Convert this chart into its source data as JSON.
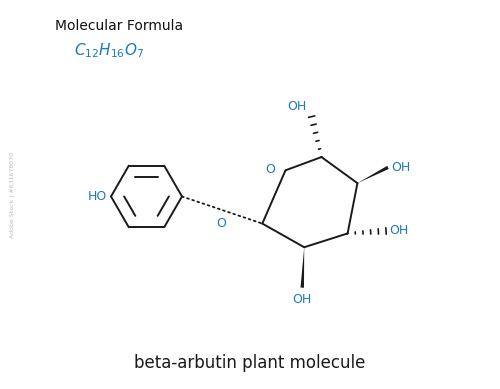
{
  "title": "beta-arbutin plant molecule",
  "formula_label": "Molecular Formula",
  "bg_color": "#ffffff",
  "bond_color": "#1a1a1a",
  "blue_color": "#1a7abf",
  "watermark": "631678070",
  "bx": 2.9,
  "by": 3.85,
  "r": 0.72,
  "C1": [
    5.25,
    3.3
  ],
  "O_r": [
    5.72,
    4.38
  ],
  "C5": [
    6.45,
    4.65
  ],
  "C4": [
    7.18,
    4.12
  ],
  "C3": [
    6.98,
    3.1
  ],
  "C2": [
    6.1,
    2.82
  ]
}
